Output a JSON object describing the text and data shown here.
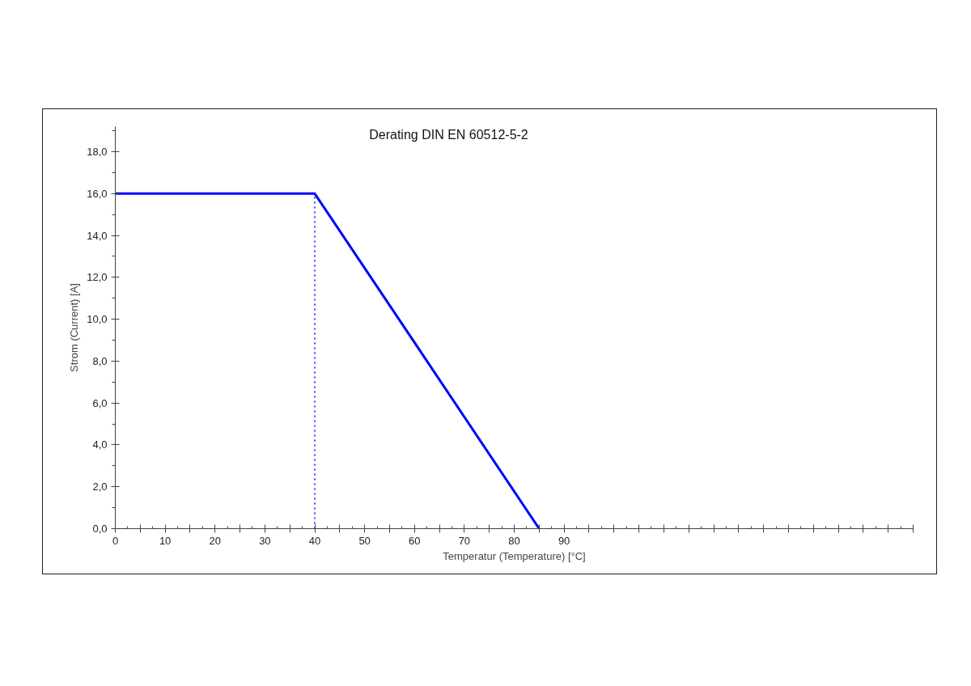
{
  "chart_data": {
    "type": "line",
    "title": "Derating DIN EN 60512-5-2",
    "xlabel": "Temperatur (Temperature) [°C]",
    "ylabel": "Strom (Current) [A]",
    "x": [
      0,
      40,
      85
    ],
    "series": [
      {
        "color": "#0000ff",
        "values": [
          16,
          16,
          0
        ]
      }
    ],
    "xlim": [
      0,
      160
    ],
    "ylim": [
      0,
      19.2
    ],
    "xticks": [
      0,
      {
        "value": 5,
        "label": null
      },
      10,
      {
        "value": 15,
        "label": null
      },
      20,
      {
        "value": 25,
        "label": null
      },
      30,
      {
        "value": 35,
        "label": null
      },
      40,
      {
        "value": 45,
        "label": null
      },
      50,
      {
        "value": 55,
        "label": null
      },
      60,
      {
        "value": 65,
        "label": null
      },
      70,
      {
        "value": 75,
        "label": null
      },
      80,
      {
        "value": 85,
        "label": null
      },
      90,
      {
        "value": 95,
        "label": null
      },
      {
        "value": 100,
        "label": null
      },
      {
        "value": 105,
        "label": null
      },
      {
        "value": 110,
        "label": null
      },
      {
        "value": 115,
        "label": null
      },
      {
        "value": 120,
        "label": null
      },
      {
        "value": 125,
        "label": null
      },
      {
        "value": 130,
        "label": null
      },
      {
        "value": 135,
        "label": null
      },
      {
        "value": 140,
        "label": null
      },
      {
        "value": 145,
        "label": null
      },
      {
        "value": 150,
        "label": null
      },
      {
        "value": 155,
        "label": null
      },
      {
        "value": 160,
        "label": null
      }
    ],
    "yticks": [
      {
        "value": 0,
        "label": "0,0"
      },
      {
        "value": 2,
        "label": "2,0"
      },
      {
        "value": 4,
        "label": "4,0"
      },
      {
        "value": 6,
        "label": "6,0"
      },
      {
        "value": 8,
        "label": "8,0"
      },
      {
        "value": 10,
        "label": "10,0"
      },
      {
        "value": 12,
        "label": "12,0"
      },
      {
        "value": 14,
        "label": "14,0"
      },
      {
        "value": 16,
        "label": "16,0"
      },
      {
        "value": 18,
        "label": "18,0"
      }
    ],
    "ref_lines": [
      {
        "axis": "x",
        "value": 40,
        "color": "#0000ff",
        "line_style": "dotted"
      }
    ],
    "grid": false,
    "marker": "none",
    "line_style": "solid"
  }
}
